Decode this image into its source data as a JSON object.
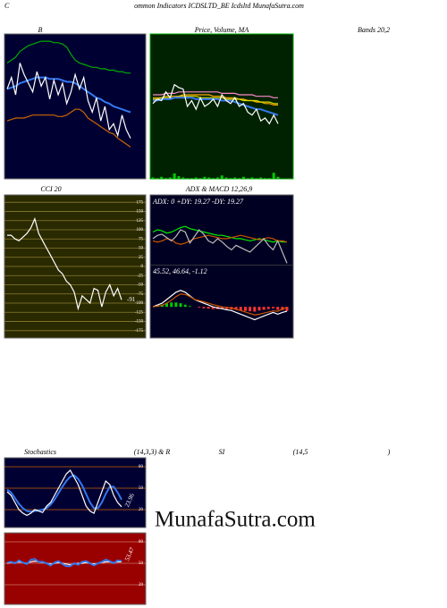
{
  "header": {
    "left": "C",
    "title": "ommon Indicators ICDSLTD_BE Icdsltd MunafaSutra.com"
  },
  "watermark": "MunafaSutra.com",
  "chart_data": [
    {
      "type": "line",
      "title": "B",
      "subtitle": "Bands 20,2",
      "background": "#000033",
      "ylim": [
        0,
        100
      ],
      "series": [
        {
          "color": "#00aa00",
          "values": [
            80,
            82,
            84,
            88,
            90,
            92,
            93,
            94,
            95,
            95,
            95,
            94,
            94,
            93,
            91,
            86,
            82,
            80,
            79,
            78,
            77,
            77,
            76,
            76,
            75,
            75,
            74,
            74,
            73,
            73
          ]
        },
        {
          "color": "#3377ee",
          "values": [
            62,
            63,
            64,
            66,
            67,
            68,
            69,
            70,
            70,
            70,
            69,
            69,
            69,
            68,
            67,
            67,
            66,
            64,
            62,
            60,
            58,
            56,
            55,
            53,
            52,
            50,
            49,
            48,
            47,
            46
          ]
        },
        {
          "color": "#ffffff",
          "values": [
            62,
            70,
            58,
            80,
            72,
            66,
            60,
            74,
            64,
            70,
            55,
            68,
            58,
            66,
            52,
            60,
            72,
            62,
            70,
            54,
            46,
            56,
            40,
            50,
            34,
            38,
            30,
            44,
            34,
            28
          ]
        },
        {
          "color": "#cc6600",
          "values": [
            40,
            41,
            42,
            42,
            42,
            43,
            44,
            44,
            44,
            44,
            44,
            44,
            43,
            43,
            44,
            46,
            48,
            48,
            46,
            42,
            40,
            38,
            36,
            34,
            32,
            31,
            28,
            26,
            24,
            22
          ]
        }
      ]
    },
    {
      "type": "line",
      "title": "Price, Volume, MA",
      "background": "#002200",
      "ylim": [
        0,
        100
      ],
      "series": [
        {
          "color": "#ff88cc",
          "values": [
            58,
            58,
            58,
            59,
            59,
            59,
            60,
            60,
            60,
            60,
            60,
            60,
            60,
            60,
            60,
            60,
            59,
            59,
            59,
            59,
            58,
            58,
            58,
            58,
            57,
            57,
            57,
            57,
            56,
            56
          ]
        },
        {
          "color": "#ffaa00",
          "values": [
            56,
            56,
            56,
            57,
            57,
            57,
            57,
            58,
            58,
            58,
            58,
            58,
            58,
            58,
            57,
            57,
            57,
            56,
            56,
            56,
            55,
            55,
            54,
            54,
            53,
            53,
            52,
            52,
            51,
            51
          ]
        },
        {
          "color": "#dddd00",
          "values": [
            55,
            55,
            56,
            56,
            56,
            56,
            57,
            57,
            57,
            57,
            57,
            56,
            56,
            56,
            56,
            56,
            56,
            55,
            55,
            55,
            55,
            54,
            54,
            54,
            54,
            53,
            53,
            53,
            52,
            52
          ]
        },
        {
          "color": "#3377ee",
          "values": [
            54,
            54,
            55,
            55,
            55,
            56,
            56,
            56,
            56,
            56,
            55,
            55,
            55,
            55,
            55,
            55,
            54,
            54,
            54,
            53,
            52,
            51,
            50,
            49,
            48,
            48,
            47,
            46,
            45,
            44
          ]
        },
        {
          "color": "#ffffff",
          "values": [
            52,
            55,
            54,
            60,
            56,
            65,
            63,
            62,
            50,
            54,
            48,
            56,
            50,
            52,
            55,
            50,
            58,
            54,
            52,
            56,
            50,
            52,
            46,
            44,
            48,
            40,
            42,
            38,
            44,
            38
          ]
        }
      ],
      "volume": {
        "color": "#00cc00",
        "ylim": [
          0,
          40
        ],
        "values": [
          2,
          1,
          3,
          1,
          2,
          8,
          4,
          2,
          1,
          1,
          2,
          1,
          3,
          2,
          1,
          2,
          5,
          2,
          1,
          2,
          1,
          3,
          1,
          2,
          1,
          2,
          1,
          1,
          9,
          3
        ]
      }
    },
    {
      "type": "line",
      "title": "CCI 20",
      "background": "#2a2a00",
      "grid_color": "#8a7a30",
      "ylim": [
        -195,
        195
      ],
      "yticks": [
        175,
        150,
        125,
        100,
        75,
        50,
        25,
        0,
        -25,
        -50,
        -75,
        -100,
        -125,
        -150,
        -175
      ],
      "series": [
        {
          "color": "#ffffff",
          "labeled": true,
          "values": [
            85,
            85,
            75,
            70,
            80,
            90,
            105,
            130,
            90,
            70,
            50,
            30,
            10,
            -10,
            -20,
            -40,
            -50,
            -70,
            -115,
            -80,
            -90,
            -100,
            -60,
            -65,
            -110,
            -70,
            -50,
            -80,
            -60,
            -91
          ]
        }
      ]
    },
    {
      "type": "line",
      "title": "ADX & MACD 12,26,9",
      "background": "#000022",
      "panes": [
        {
          "label": "ADX: 0 +DY: 19.27 -DY: 19.27",
          "ylim": [
            0,
            50
          ],
          "series": [
            {
              "color": "#00ee00",
              "values": [
                28,
                30,
                29,
                27,
                28,
                30,
                32,
                33,
                31,
                30,
                29,
                28,
                27,
                26,
                25,
                25,
                24,
                23,
                22,
                22,
                21,
                20,
                21,
                22,
                21,
                20,
                19,
                20,
                19,
                19
              ]
            },
            {
              "color": "#cc5500",
              "values": [
                20,
                19,
                20,
                22,
                21,
                18,
                17,
                18,
                20,
                22,
                23,
                24,
                25,
                24,
                23,
                22,
                22,
                23,
                24,
                25,
                24,
                23,
                22,
                21,
                22,
                23,
                22,
                20,
                20,
                19
              ]
            },
            {
              "color": "#bbbbbb",
              "values": [
                22,
                25,
                26,
                23,
                20,
                24,
                30,
                28,
                18,
                24,
                30,
                26,
                20,
                18,
                22,
                19,
                15,
                12,
                16,
                14,
                12,
                10,
                14,
                18,
                22,
                16,
                12,
                20,
                10,
                0
              ]
            }
          ]
        },
        {
          "label": "45.52, 46.64, -1.12",
          "ylim": [
            -8,
            8
          ],
          "series": [
            {
              "type": "bar",
              "color": "#00cc00",
              "negative_color": "#ff3333",
              "values": [
                0,
                0.3,
                0.6,
                1,
                1.2,
                1.2,
                1,
                0.6,
                0.2,
                0,
                -0.2,
                -0.4,
                -0.5,
                -0.6,
                -0.6,
                -0.5,
                -0.6,
                -0.7,
                -0.8,
                -1,
                -1.1,
                -1.2,
                -1.3,
                -1,
                -0.8,
                -0.6,
                -0.4,
                -0.8,
                -0.9,
                -1.12
              ]
            },
            {
              "color": "#ffffff",
              "values": [
                0,
                0.5,
                1,
                2,
                3,
                4,
                4.5,
                4,
                3,
                2,
                1.5,
                1,
                0.5,
                0,
                -0.3,
                -0.5,
                -0.8,
                -1,
                -1.5,
                -2,
                -2.5,
                -3,
                -3.5,
                -3,
                -2.5,
                -2,
                -1.5,
                -2,
                -1.5,
                -1.2
              ]
            },
            {
              "color": "#cc5500",
              "values": [
                0,
                0.2,
                0.4,
                1,
                1.8,
                2.8,
                3.5,
                3.4,
                2.8,
                2,
                1.7,
                1.4,
                1,
                0.6,
                0.3,
                0,
                -0.2,
                -0.3,
                -0.7,
                -1,
                -1.4,
                -1.8,
                -2.2,
                -2,
                -1.7,
                -1.4,
                -1.1,
                -1.2,
                -0.6,
                -0.1
              ]
            }
          ]
        }
      ]
    },
    {
      "type": "line",
      "title_parts": [
        "Stochastics",
        "(14,3,3) & R",
        "SI",
        "(14,5",
        ")"
      ],
      "background": "#000033",
      "grid_color": "#cc6600",
      "ylim": [
        -5,
        92.5
      ],
      "yticks": [
        80,
        50,
        20
      ],
      "series": [
        {
          "color": "#3377ee",
          "values": [
            48,
            44,
            36,
            28,
            22,
            18,
            17,
            18,
            19,
            20,
            22,
            27,
            34,
            43,
            52,
            60,
            66,
            68,
            63,
            54,
            42,
            30,
            22,
            22,
            30,
            42,
            52,
            52,
            44,
            34
          ]
        },
        {
          "color": "#ffffff",
          "labeled": true,
          "values": [
            45,
            40,
            30,
            20,
            15,
            12,
            15,
            20,
            18,
            16,
            25,
            30,
            40,
            50,
            60,
            70,
            75,
            65,
            55,
            40,
            25,
            18,
            15,
            30,
            45,
            60,
            55,
            40,
            30,
            23.96
          ]
        }
      ]
    },
    {
      "type": "line",
      "background": "#990000",
      "grid_color": "#cc7766",
      "ylim": [
        -7.5,
        92.5
      ],
      "yticks": [
        80,
        50,
        20
      ],
      "series": [
        {
          "color": "#ffffff",
          "values": [
            50,
            51,
            51,
            52,
            51,
            50,
            52,
            53,
            52,
            51,
            50,
            49,
            50,
            51,
            50,
            49,
            48,
            49,
            50,
            50,
            51,
            50,
            49,
            50,
            51,
            52,
            52,
            51,
            52,
            52
          ]
        },
        {
          "color": "#3377ee",
          "labeled": true,
          "values": [
            51,
            52,
            50,
            54,
            51,
            49,
            55,
            56,
            52,
            52,
            50,
            47,
            51,
            53,
            49,
            46,
            46,
            50,
            48,
            52,
            53,
            50,
            47,
            50,
            52,
            55,
            53,
            50,
            54,
            53.47
          ]
        }
      ]
    }
  ]
}
